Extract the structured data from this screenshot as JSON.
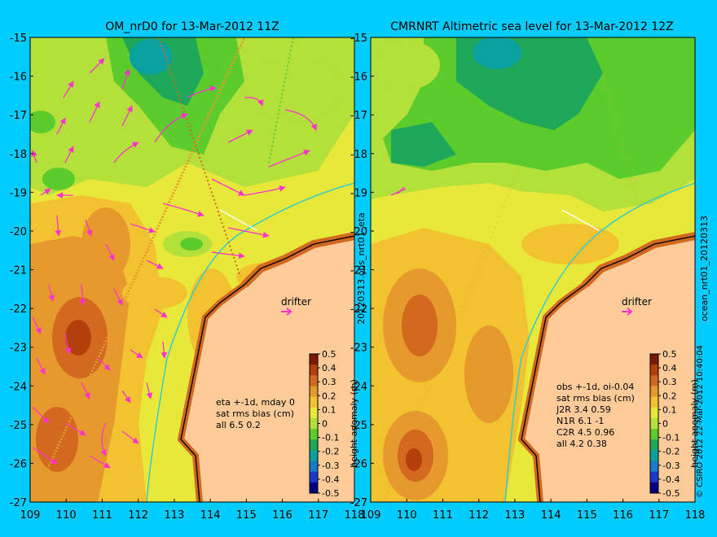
{
  "colors": {
    "background": "#00ccff",
    "land": "#ffcc99",
    "arrow": "#ff33cc",
    "drifter": "#ff33cc",
    "coast_current": "#33cccc",
    "grid": "#999999"
  },
  "icons": {
    "drifter_arrow": "right-arrow-icon",
    "copyright": "copyright-symbol-icon"
  },
  "left_panel": {
    "title": "OM_nrD0 for 13-Mar-2012 11Z",
    "lat_ticks": [
      "-15",
      "-16",
      "-17",
      "-18",
      "-19",
      "-20",
      "-21",
      "-22",
      "-23",
      "-24",
      "-25",
      "-26",
      "-27"
    ],
    "lon_ticks": [
      "109",
      "110",
      "111",
      "112",
      "113",
      "114",
      "115",
      "116",
      "117",
      "118"
    ],
    "side_label": "20120313.obs_nrt01_eta",
    "drifter_label": "drifter",
    "info": [
      "eta +-1d, mday 0",
      "sat rms bias (cm)",
      "all 6.5 0.2"
    ]
  },
  "right_panel": {
    "title": "CMRNRT Altimetric sea level  for 13-Mar-2012 12Z",
    "lat_ticks": [
      "-15",
      "-16",
      "-17",
      "-18",
      "-19",
      "-20",
      "-21",
      "-22",
      "-23",
      "-24",
      "-25",
      "-26",
      "-27"
    ],
    "lon_ticks": [
      "109",
      "110",
      "111",
      "112",
      "113",
      "114",
      "115",
      "116",
      "117",
      "118"
    ],
    "side_label": "ocean_nrt01_20120313",
    "drifter_label": "drifter",
    "info": [
      "obs +-1d, oi-0.04",
      "sat rms bias (cm)",
      "J2R   3.4  0.59",
      "N1R   6.1  -1",
      "C2R   4.5  0.96",
      "all 4.2  0.38"
    ],
    "credit": "© CSIRO 2012   22-Mar-2012 10:40:04"
  },
  "colorbar": {
    "label": "height anomaly (m)",
    "ticks": [
      "0.5",
      "0.4",
      "0.3",
      "0.2",
      "0.1",
      "0",
      "-0.1",
      "-0.2",
      "-0.3",
      "-0.4",
      "-0.5"
    ],
    "colors": [
      "#7a1a00",
      "#b3400a",
      "#d2691e",
      "#e69a2e",
      "#f2c230",
      "#e8e83a",
      "#b3e03a",
      "#5ccc2c",
      "#1fa85a",
      "#0aa0a0",
      "#1a7acc",
      "#1a3acc",
      "#000080"
    ]
  }
}
